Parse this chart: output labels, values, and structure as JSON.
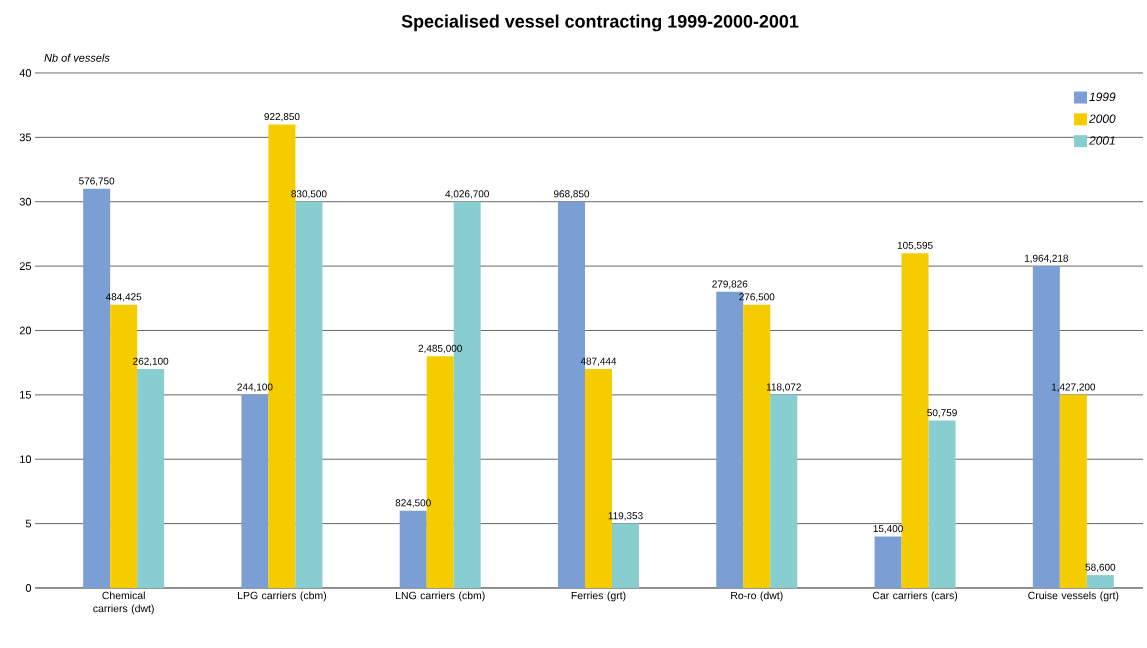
{
  "chart_data": {
    "type": "bar",
    "title": "Specialised vessel contracting 1999-2000-2001",
    "ylabel": "Nb of vessels",
    "categories": [
      "Chemical carriers (dwt)",
      "LPG carriers (cbm)",
      "LNG carriers (cbm)",
      "Ferries (grt)",
      "Ro-ro (dwt)",
      "Car carriers (cars)",
      "Cruise vessels (grt)"
    ],
    "series": [
      {
        "name": "1999",
        "color": "#7b9fd4",
        "values": [
          31,
          15,
          6,
          30,
          23,
          4,
          25
        ]
      },
      {
        "name": "2000",
        "color": "#f5cc00",
        "values": [
          22,
          36,
          18,
          17,
          22,
          26,
          15
        ]
      },
      {
        "name": "2001",
        "color": "#88cdd0",
        "values": [
          17,
          30,
          30,
          5,
          15,
          13,
          1
        ]
      }
    ],
    "annotations": [
      "576,750",
      "244,100",
      "824,500",
      "968,850",
      "279,826",
      "15,400",
      "1,964,218",
      "484,425",
      "922,850",
      "2,485,000",
      "487,444",
      "276,500",
      "105,595",
      "1,427,200",
      "262,100",
      "830,500",
      "4,026,700",
      "119,353",
      "118,072",
      "50,759",
      "58,600"
    ],
    "ylim": [
      0,
      40
    ],
    "yticks": [
      0,
      5,
      10,
      15,
      20,
      25,
      30,
      35,
      40
    ],
    "grid": "y",
    "legend": "top right"
  }
}
